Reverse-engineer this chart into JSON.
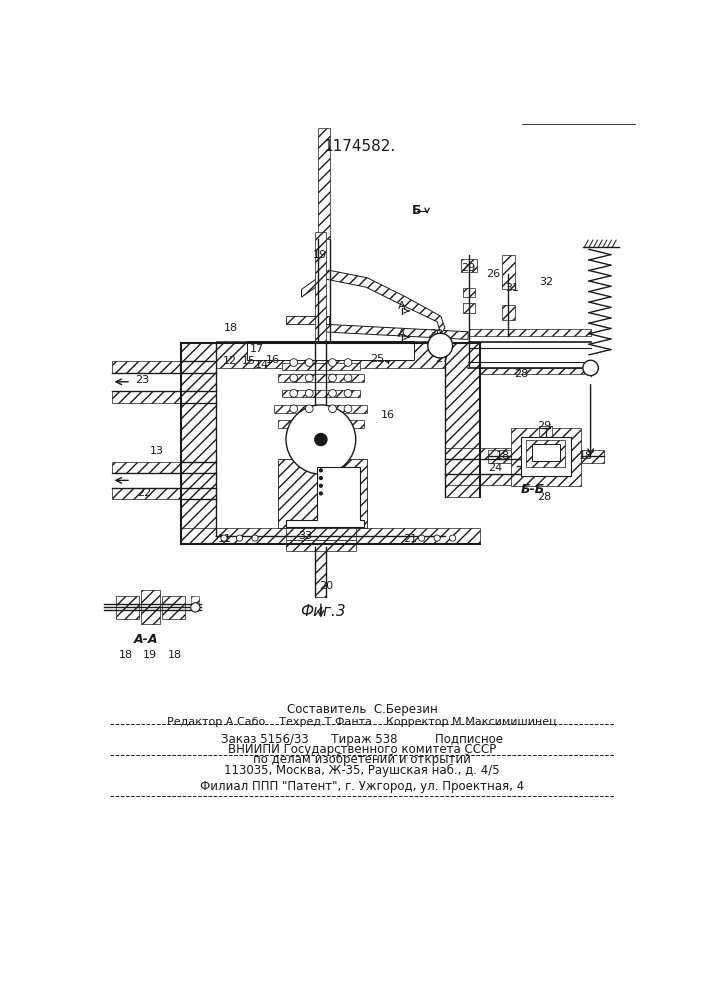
{
  "patent_number": "1174582.",
  "fig_label": "Фиг.3",
  "section_aa": "А-А",
  "section_bb": "Б-Б",
  "bg_color": "#f5f5f0",
  "line_color": "#1a1a1a",
  "footer": {
    "line1": "Составитель  С.Березин",
    "line2": "Редактор А.Сабо    Техред Т.Фанта    Корректор М.Максимишинец",
    "line3": "Заказ 5156/33      Тираж 538          Подписное",
    "line4": "ВНИИПИ Государственного комитета СССР",
    "line5": "по делам изобретений и открытий",
    "line6": "113035, Москва, Ж-35, Раушская наб., д. 4/5",
    "line7": "Филиал ППП \"Патент\", г. Ужгород, ул. Проектная, 4"
  }
}
